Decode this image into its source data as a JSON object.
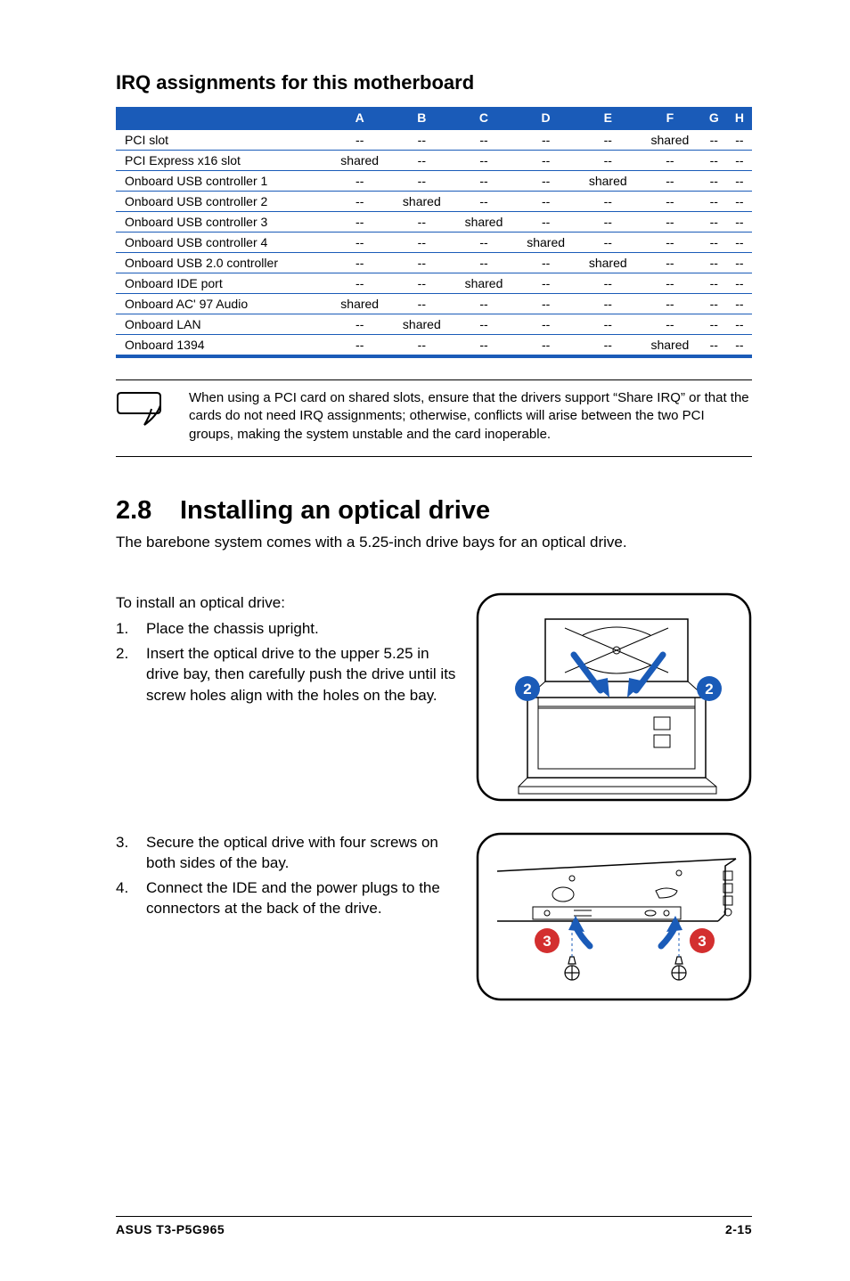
{
  "subtitle": "IRQ assignments for this motherboard",
  "table": {
    "columns": [
      "",
      "A",
      "B",
      "C",
      "D",
      "E",
      "F",
      "G",
      "H"
    ],
    "rows": [
      [
        "PCI slot",
        "--",
        "--",
        "--",
        "--",
        "--",
        "shared",
        "--",
        "--"
      ],
      [
        "PCI Express x16 slot",
        "shared",
        "--",
        "--",
        "--",
        "--",
        "--",
        "--",
        "--"
      ],
      [
        "Onboard USB controller 1",
        "--",
        "--",
        "--",
        "--",
        "shared",
        "--",
        "--",
        "--"
      ],
      [
        "Onboard USB controller 2",
        "--",
        "shared",
        "--",
        "--",
        "--",
        "--",
        "--",
        "--"
      ],
      [
        "Onboard USB controller 3",
        "--",
        "--",
        "shared",
        "--",
        "--",
        "--",
        "--",
        "--"
      ],
      [
        "Onboard USB controller 4",
        "--",
        "--",
        "--",
        "shared",
        "--",
        "--",
        "--",
        "--"
      ],
      [
        "Onboard USB 2.0 controller",
        "--",
        "--",
        "--",
        "--",
        "shared",
        "--",
        "--",
        "--"
      ],
      [
        "Onboard IDE port",
        "--",
        "--",
        "shared",
        "--",
        "--",
        "--",
        "--",
        "--"
      ],
      [
        "Onboard AC' 97 Audio",
        "shared",
        "--",
        "--",
        "--",
        "--",
        "--",
        "--",
        "--"
      ],
      [
        "Onboard LAN",
        "--",
        "shared",
        "--",
        "--",
        "--",
        "--",
        "--",
        "--"
      ],
      [
        "Onboard 1394",
        "--",
        "--",
        "--",
        "--",
        "--",
        "shared",
        "--",
        "--"
      ]
    ],
    "header_bg": "#1a5bb8",
    "header_fg": "#ffffff",
    "border_color": "#1a5bb8"
  },
  "note": "When using a PCI card on shared slots, ensure that the drivers support “Share IRQ” or that the cards do not need IRQ assignments; otherwise, conflicts will arise between the two PCI groups, making the system unstable and the card inoperable.",
  "section": {
    "num": "2.8",
    "title": "Installing an optical drive"
  },
  "intro": "The barebone system comes with a 5.25-inch drive bays for an optical drive.",
  "block1": {
    "lead": "To install an optical drive:",
    "steps": [
      {
        "n": "1.",
        "t": "Place the chassis upright."
      },
      {
        "n": "2.",
        "t": "Insert the optical drive to the upper 5.25 in drive bay, then carefully push the drive until its screw holes align with the holes on the bay."
      }
    ],
    "badge": "2",
    "badge_color": "#1a5bb8"
  },
  "block2": {
    "steps": [
      {
        "n": "3.",
        "t": "Secure the optical drive with four screws on both sides of the bay."
      },
      {
        "n": "4.",
        "t": "Connect the IDE and the power plugs to the connectors at the back of the drive."
      }
    ],
    "badge": "3",
    "badge_color": "#d32f2f"
  },
  "footer": {
    "left": "ASUS T3-P5G965",
    "right": "2-15"
  }
}
